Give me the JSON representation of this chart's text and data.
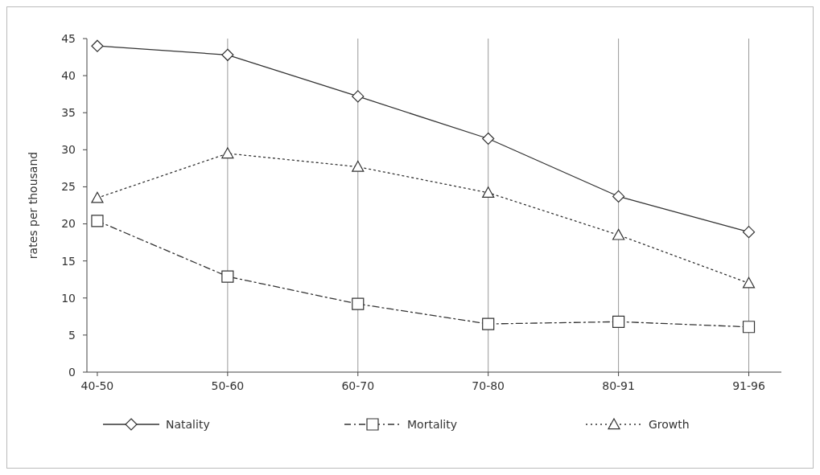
{
  "chart_data": {
    "type": "line",
    "ylabel": "rates per thousand",
    "categories": [
      "40-50",
      "50-60",
      "60-70",
      "70-80",
      "80-91",
      "91-96"
    ],
    "ylim": [
      0,
      45
    ],
    "yticks": [
      0,
      5,
      10,
      15,
      20,
      25,
      30,
      35,
      40,
      45
    ],
    "grid": "x",
    "legend": "bottom",
    "series": [
      {
        "name": "Natality",
        "color": "#333333",
        "marker": "diamond",
        "line_style": "solid",
        "values": [
          44,
          42.8,
          37.2,
          31.5,
          23.7,
          18.9
        ]
      },
      {
        "name": "Mortality",
        "color": "#333333",
        "marker": "square",
        "line_style": "dashdot",
        "values": [
          20.4,
          12.9,
          9.2,
          6.5,
          6.8,
          6.1
        ]
      },
      {
        "name": "Growth",
        "color": "#333333",
        "marker": "triangle",
        "line_style": "dotted",
        "values": [
          23.5,
          29.5,
          27.7,
          24.2,
          18.5,
          12.0
        ]
      }
    ]
  }
}
